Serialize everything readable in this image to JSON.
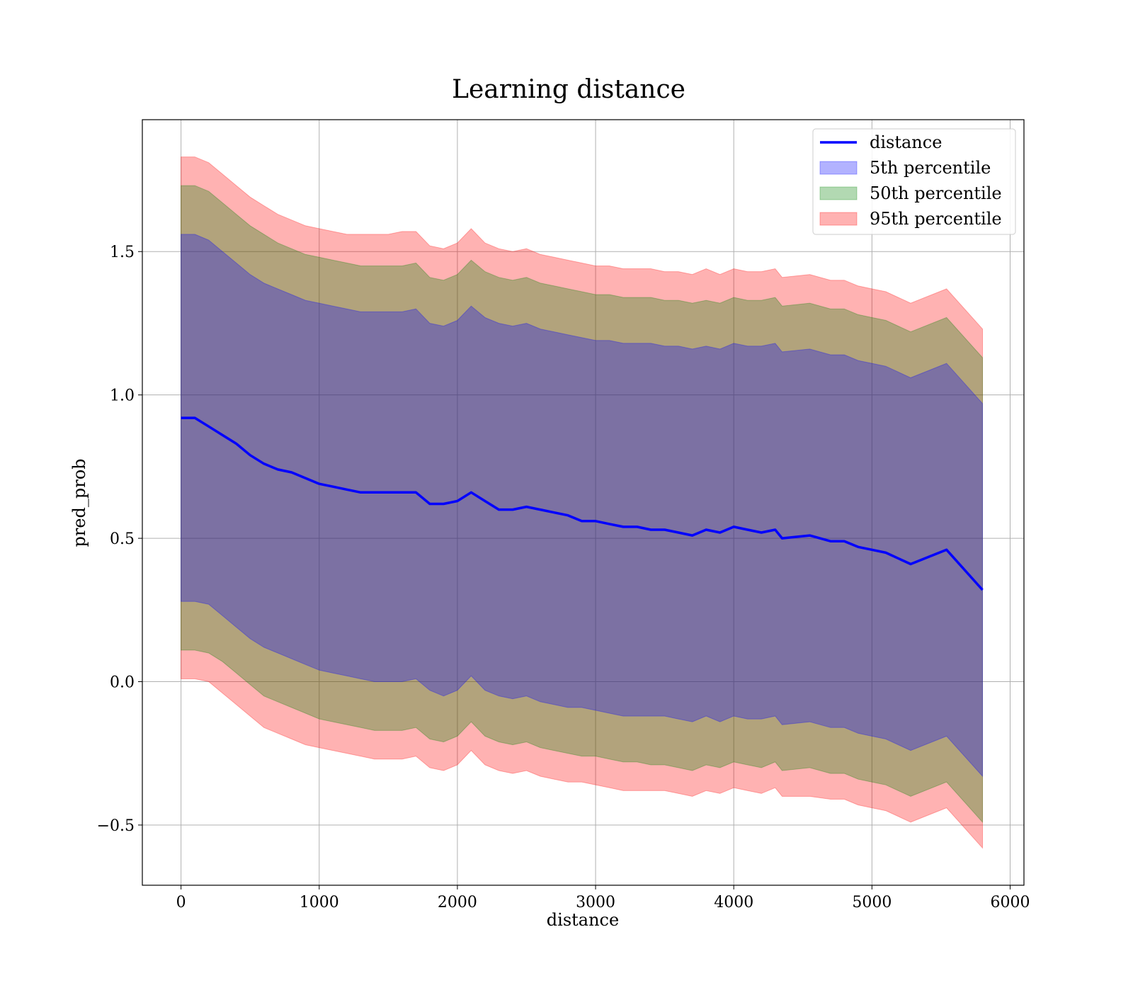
{
  "chart_data": {
    "type": "area",
    "title": "Learning distance",
    "xlabel": "distance",
    "ylabel": "pred_prob",
    "xlim": [
      -280,
      6100
    ],
    "ylim": [
      -0.71,
      1.96
    ],
    "x_ticks": [
      0,
      1000,
      2000,
      3000,
      4000,
      5000,
      6000
    ],
    "x_tick_labels": [
      "0",
      "1000",
      "2000",
      "3000",
      "4000",
      "5000",
      "6000"
    ],
    "y_ticks": [
      -0.5,
      0.0,
      0.5,
      1.0,
      1.5
    ],
    "y_tick_labels": [
      "−0.5",
      "0.0",
      "0.5",
      "1.0",
      "1.5"
    ],
    "grid": true,
    "legend_position": "top-right",
    "x": [
      0,
      100,
      200,
      300,
      400,
      500,
      600,
      700,
      800,
      900,
      1000,
      1100,
      1200,
      1300,
      1400,
      1500,
      1600,
      1700,
      1800,
      1900,
      2000,
      2100,
      2200,
      2300,
      2400,
      2500,
      2600,
      2700,
      2800,
      2900,
      3000,
      3100,
      3200,
      3300,
      3400,
      3500,
      3600,
      3700,
      3800,
      3900,
      4000,
      4100,
      4200,
      4300,
      4350,
      4550,
      4700,
      4800,
      4900,
      5000,
      5100,
      5280,
      5540,
      5800
    ],
    "series": [
      {
        "name": "distance",
        "kind": "line",
        "color": "#0000ff",
        "values": [
          0.92,
          0.92,
          0.89,
          0.86,
          0.83,
          0.79,
          0.76,
          0.74,
          0.73,
          0.71,
          0.69,
          0.68,
          0.67,
          0.66,
          0.66,
          0.66,
          0.66,
          0.66,
          0.62,
          0.62,
          0.63,
          0.66,
          0.63,
          0.6,
          0.6,
          0.61,
          0.6,
          0.59,
          0.58,
          0.56,
          0.56,
          0.55,
          0.54,
          0.54,
          0.53,
          0.53,
          0.52,
          0.51,
          0.53,
          0.52,
          0.54,
          0.53,
          0.52,
          0.53,
          0.5,
          0.51,
          0.49,
          0.49,
          0.47,
          0.46,
          0.45,
          0.41,
          0.46,
          0.32
        ]
      },
      {
        "name": "5th percentile",
        "kind": "band",
        "color": "#0000ff",
        "opacity": 0.3,
        "lower": [
          0.28,
          0.28,
          0.27,
          0.23,
          0.19,
          0.15,
          0.12,
          0.1,
          0.08,
          0.06,
          0.04,
          0.03,
          0.02,
          0.01,
          0.0,
          0.0,
          0.0,
          0.01,
          -0.03,
          -0.05,
          -0.03,
          0.02,
          -0.03,
          -0.05,
          -0.06,
          -0.05,
          -0.07,
          -0.08,
          -0.09,
          -0.09,
          -0.1,
          -0.11,
          -0.12,
          -0.12,
          -0.12,
          -0.12,
          -0.13,
          -0.14,
          -0.12,
          -0.14,
          -0.12,
          -0.13,
          -0.13,
          -0.12,
          -0.15,
          -0.14,
          -0.16,
          -0.16,
          -0.18,
          -0.19,
          -0.2,
          -0.24,
          -0.19,
          -0.33
        ],
        "upper": [
          1.56,
          1.56,
          1.54,
          1.5,
          1.46,
          1.42,
          1.39,
          1.37,
          1.35,
          1.33,
          1.32,
          1.31,
          1.3,
          1.29,
          1.29,
          1.29,
          1.29,
          1.3,
          1.25,
          1.24,
          1.26,
          1.31,
          1.27,
          1.25,
          1.24,
          1.25,
          1.23,
          1.22,
          1.21,
          1.2,
          1.19,
          1.19,
          1.18,
          1.18,
          1.18,
          1.17,
          1.17,
          1.16,
          1.17,
          1.16,
          1.18,
          1.17,
          1.17,
          1.18,
          1.15,
          1.16,
          1.14,
          1.14,
          1.12,
          1.11,
          1.1,
          1.06,
          1.11,
          0.97
        ]
      },
      {
        "name": "50th percentile",
        "kind": "band",
        "color": "#008000",
        "opacity": 0.3,
        "lower": [
          0.11,
          0.11,
          0.1,
          0.07,
          0.03,
          -0.01,
          -0.05,
          -0.07,
          -0.09,
          -0.11,
          -0.13,
          -0.14,
          -0.15,
          -0.16,
          -0.17,
          -0.17,
          -0.17,
          -0.16,
          -0.2,
          -0.21,
          -0.19,
          -0.14,
          -0.19,
          -0.21,
          -0.22,
          -0.21,
          -0.23,
          -0.24,
          -0.25,
          -0.26,
          -0.26,
          -0.27,
          -0.28,
          -0.28,
          -0.29,
          -0.29,
          -0.3,
          -0.31,
          -0.29,
          -0.3,
          -0.28,
          -0.29,
          -0.3,
          -0.28,
          -0.31,
          -0.3,
          -0.32,
          -0.32,
          -0.34,
          -0.35,
          -0.36,
          -0.4,
          -0.35,
          -0.49
        ],
        "upper": [
          1.73,
          1.73,
          1.71,
          1.67,
          1.63,
          1.59,
          1.56,
          1.53,
          1.51,
          1.49,
          1.48,
          1.47,
          1.46,
          1.45,
          1.45,
          1.45,
          1.45,
          1.46,
          1.41,
          1.4,
          1.42,
          1.47,
          1.43,
          1.41,
          1.4,
          1.41,
          1.39,
          1.38,
          1.37,
          1.36,
          1.35,
          1.35,
          1.34,
          1.34,
          1.34,
          1.33,
          1.33,
          1.32,
          1.33,
          1.32,
          1.34,
          1.33,
          1.33,
          1.34,
          1.31,
          1.32,
          1.3,
          1.3,
          1.28,
          1.27,
          1.26,
          1.22,
          1.27,
          1.13
        ]
      },
      {
        "name": "95th percentile",
        "kind": "band",
        "color": "#ff0000",
        "opacity": 0.3,
        "lower": [
          0.01,
          0.01,
          0.0,
          -0.04,
          -0.08,
          -0.12,
          -0.16,
          -0.18,
          -0.2,
          -0.22,
          -0.23,
          -0.24,
          -0.25,
          -0.26,
          -0.27,
          -0.27,
          -0.27,
          -0.26,
          -0.3,
          -0.31,
          -0.29,
          -0.24,
          -0.29,
          -0.31,
          -0.32,
          -0.31,
          -0.33,
          -0.34,
          -0.35,
          -0.35,
          -0.36,
          -0.37,
          -0.38,
          -0.38,
          -0.38,
          -0.38,
          -0.39,
          -0.4,
          -0.38,
          -0.39,
          -0.37,
          -0.38,
          -0.39,
          -0.37,
          -0.4,
          -0.4,
          -0.41,
          -0.41,
          -0.43,
          -0.44,
          -0.45,
          -0.49,
          -0.44,
          -0.58
        ],
        "upper": [
          1.83,
          1.83,
          1.81,
          1.77,
          1.73,
          1.69,
          1.66,
          1.63,
          1.61,
          1.59,
          1.58,
          1.57,
          1.56,
          1.56,
          1.56,
          1.56,
          1.57,
          1.57,
          1.52,
          1.51,
          1.53,
          1.58,
          1.53,
          1.51,
          1.5,
          1.51,
          1.49,
          1.48,
          1.47,
          1.46,
          1.45,
          1.45,
          1.44,
          1.44,
          1.44,
          1.43,
          1.43,
          1.42,
          1.44,
          1.42,
          1.44,
          1.43,
          1.43,
          1.44,
          1.41,
          1.42,
          1.4,
          1.4,
          1.38,
          1.37,
          1.36,
          1.32,
          1.37,
          1.23
        ]
      }
    ]
  }
}
